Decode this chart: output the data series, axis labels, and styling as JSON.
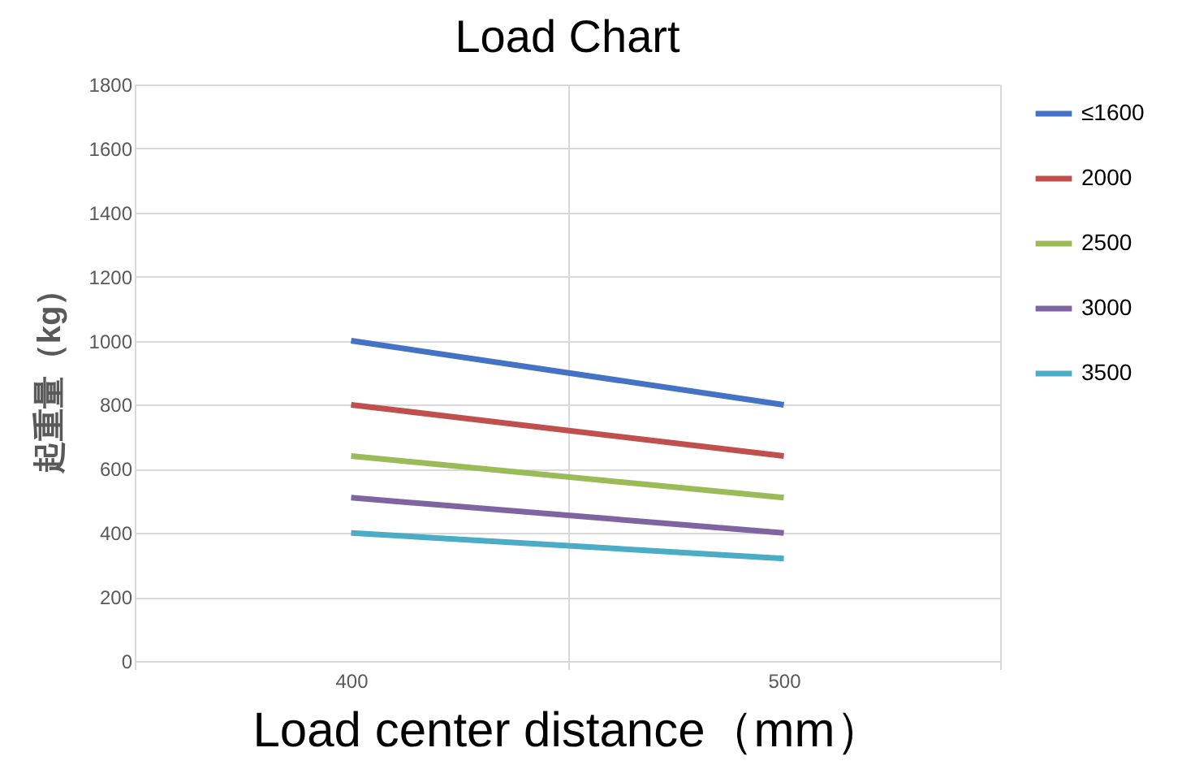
{
  "chart_data": {
    "type": "line",
    "title": "Load Chart",
    "xlabel": "Load center distance（mm）",
    "ylabel": "起重量（kg）",
    "categories": [
      "400",
      "500"
    ],
    "series": [
      {
        "name": "≤1600",
        "color": "#4472c4",
        "values": [
          1000,
          800
        ]
      },
      {
        "name": "2000",
        "color": "#c0504d",
        "values": [
          800,
          640
        ]
      },
      {
        "name": "2500",
        "color": "#9bbb59",
        "values": [
          640,
          510
        ]
      },
      {
        "name": "3000",
        "color": "#8064a2",
        "values": [
          510,
          400
        ]
      },
      {
        "name": "3500",
        "color": "#4bacc6",
        "values": [
          400,
          320
        ]
      }
    ],
    "ylim": [
      0,
      1800
    ],
    "yticks": [
      0,
      200,
      400,
      600,
      800,
      1000,
      1200,
      1400,
      1600,
      1800
    ],
    "grid": true,
    "legend": "right",
    "marker": "none",
    "line_style": "solid"
  }
}
